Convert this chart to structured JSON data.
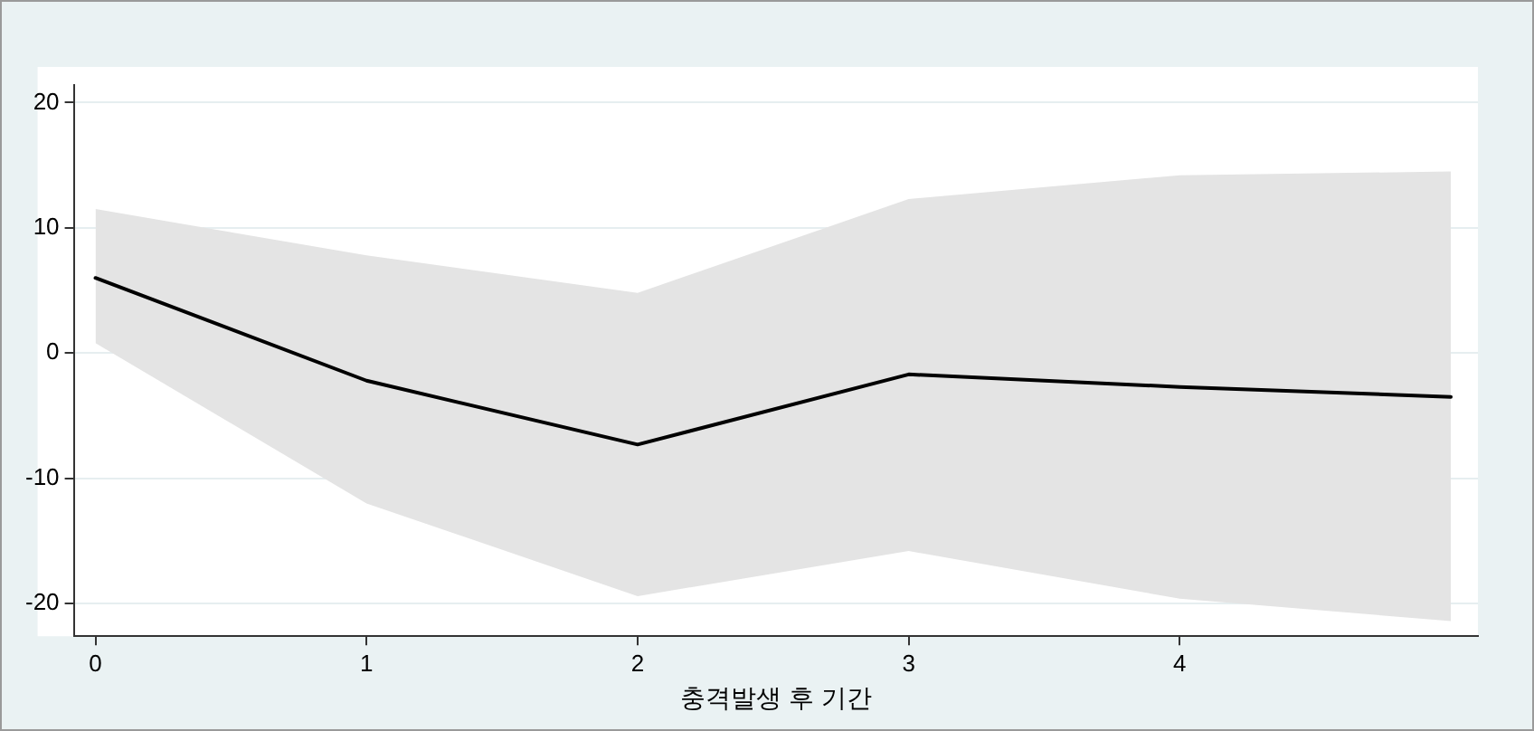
{
  "chart_data": {
    "type": "line",
    "xlabel": "충격발생 후 기간",
    "x": [
      0,
      1,
      2,
      3,
      4,
      5
    ],
    "series": [
      {
        "color": "#000000",
        "values": [
          6.0,
          -2.2,
          -7.3,
          -1.7,
          -2.7,
          -3.5
        ],
        "lower": [
          0.8,
          -12.0,
          -19.4,
          -15.8,
          -19.6,
          -21.4
        ],
        "upper": [
          11.5,
          7.8,
          4.8,
          12.3,
          14.2,
          14.5
        ]
      }
    ],
    "xlim": [
      -0.08,
      5.1
    ],
    "xticks": [
      0,
      1,
      2,
      3,
      4
    ],
    "ylim": [
      -22.6,
      21.4
    ],
    "yticks": [
      -20,
      -10,
      0,
      10,
      20
    ],
    "grid": "y",
    "legend": false,
    "marker": "none",
    "line_style": "solid"
  }
}
